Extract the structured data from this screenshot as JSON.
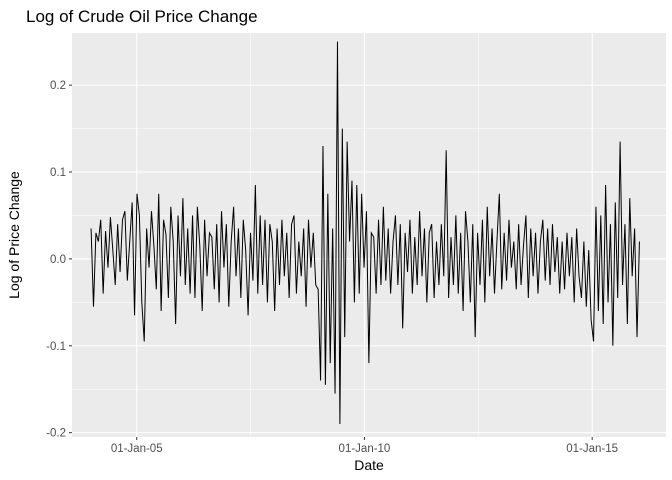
{
  "chart_data": {
    "type": "line",
    "title": "Log of Crude Oil Price Change",
    "xlabel": "Date",
    "ylabel": "Log of Price Change",
    "x_type": "date",
    "xlim": [
      "2003-08-01",
      "2016-08-15"
    ],
    "ylim": [
      -0.205,
      0.26
    ],
    "x_ticks": [
      {
        "date": "2005-01-01",
        "label": "01-Jan-05"
      },
      {
        "date": "2010-01-01",
        "label": "01-Jan-10"
      },
      {
        "date": "2015-01-01",
        "label": "01-Jan-15"
      }
    ],
    "y_ticks": [
      {
        "value": -0.2,
        "label": "-0.2"
      },
      {
        "value": -0.1,
        "label": "-0.1"
      },
      {
        "value": 0.0,
        "label": "0.0"
      },
      {
        "value": 0.1,
        "label": "0.1"
      },
      {
        "value": 0.2,
        "label": "0.2"
      }
    ],
    "grid": true,
    "line_color": "#000000",
    "panel_color": "#ebebeb",
    "grid_color": "#ffffff",
    "series": [
      {
        "date_range": [
          "2004-01-01",
          "2016-01-15"
        ],
        "values": [
          0.035,
          -0.055,
          0.03,
          0.02,
          0.045,
          -0.04,
          0.032,
          -0.01,
          0.048,
          0.01,
          -0.03,
          0.04,
          -0.015,
          0.045,
          0.055,
          -0.025,
          0.02,
          0.065,
          -0.065,
          0.075,
          0.05,
          -0.05,
          -0.095,
          0.035,
          -0.01,
          0.055,
          0.015,
          -0.035,
          0.075,
          -0.06,
          0.045,
          0.028,
          -0.045,
          0.06,
          0.02,
          -0.075,
          0.05,
          -0.02,
          0.07,
          -0.03,
          0.035,
          -0.04,
          0.05,
          -0.045,
          0.06,
          0.015,
          -0.06,
          0.045,
          -0.02,
          0.03,
          0.025,
          -0.035,
          0.04,
          -0.05,
          0.055,
          -0.01,
          0.04,
          -0.055,
          0.02,
          0.06,
          -0.02,
          0.035,
          -0.045,
          0.045,
          0.01,
          -0.065,
          0.03,
          -0.025,
          0.085,
          -0.04,
          0.05,
          -0.03,
          0.045,
          -0.05,
          0.04,
          0.02,
          -0.06,
          0.035,
          -0.03,
          0.045,
          -0.02,
          0.03,
          -0.045,
          0.04,
          0.05,
          -0.04,
          0.02,
          -0.02,
          0.035,
          -0.055,
          0.045,
          -0.01,
          0.03,
          -0.03,
          -0.035,
          -0.14,
          0.13,
          -0.145,
          0.075,
          -0.12,
          0.035,
          -0.155,
          0.25,
          -0.19,
          0.15,
          -0.09,
          0.135,
          0.02,
          0.09,
          -0.05,
          0.085,
          -0.04,
          0.075,
          -0.01,
          0.055,
          -0.12,
          0.03,
          0.025,
          -0.04,
          0.045,
          -0.03,
          0.06,
          -0.025,
          0.035,
          -0.04,
          0.02,
          0.05,
          -0.03,
          0.04,
          -0.08,
          0.03,
          -0.015,
          0.045,
          -0.04,
          0.025,
          -0.03,
          0.055,
          -0.02,
          0.035,
          -0.05,
          0.03,
          0.04,
          -0.045,
          0.02,
          -0.03,
          0.04,
          -0.02,
          0.125,
          -0.045,
          0.025,
          -0.03,
          0.05,
          -0.04,
          0.03,
          -0.06,
          0.055,
          0.02,
          -0.05,
          0.04,
          -0.09,
          0.03,
          -0.03,
          0.045,
          -0.05,
          0.06,
          -0.02,
          0.035,
          -0.04,
          0.02,
          0.075,
          -0.035,
          0.03,
          -0.025,
          0.045,
          -0.01,
          0.02,
          -0.035,
          0.04,
          -0.03,
          0.015,
          0.05,
          -0.045,
          0.035,
          -0.02,
          0.03,
          -0.04,
          0.02,
          0.045,
          -0.025,
          0.035,
          -0.03,
          0.04,
          -0.015,
          0.025,
          -0.04,
          0.02,
          -0.035,
          0.03,
          -0.02,
          0.025,
          -0.05,
          0.035,
          -0.02,
          -0.045,
          0.02,
          -0.055,
          0.01,
          -0.07,
          -0.095,
          0.06,
          -0.06,
          0.05,
          -0.075,
          0.085,
          -0.05,
          0.04,
          -0.1,
          0.065,
          -0.045,
          0.135,
          -0.03,
          0.04,
          -0.075,
          0.07,
          -0.02,
          0.035,
          -0.09,
          0.02
        ]
      }
    ]
  }
}
